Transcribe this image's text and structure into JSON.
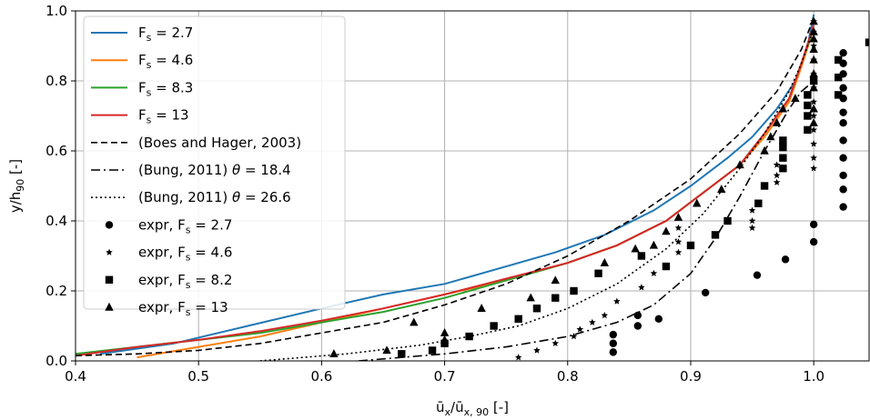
{
  "chart_data": {
    "type": "line",
    "xlabel": "ū_x/ū_x, 90 [-]",
    "ylabel": "y/h_90 [-]",
    "xlim": [
      0.4,
      1.045
    ],
    "ylim": [
      0.0,
      1.0
    ],
    "xticks": [
      "0.4",
      "0.5",
      "0.6",
      "0.7",
      "0.8",
      "0.9",
      "1.0"
    ],
    "yticks": [
      "0.0",
      "0.2",
      "0.4",
      "0.6",
      "0.8",
      "1.0"
    ],
    "grid": true,
    "legend_position": "top-left",
    "series": [
      {
        "name": "F_s = 2.7",
        "kind": "line",
        "color": "#1f77b4",
        "x": [
          0.42,
          0.48,
          0.54,
          0.6,
          0.65,
          0.7,
          0.75,
          0.79,
          0.83,
          0.87,
          0.9,
          0.93,
          0.95,
          0.97,
          0.985,
          0.995,
          1.0
        ],
        "y": [
          0.02,
          0.05,
          0.1,
          0.15,
          0.19,
          0.22,
          0.27,
          0.31,
          0.36,
          0.43,
          0.5,
          0.58,
          0.64,
          0.72,
          0.8,
          0.9,
          0.99
        ]
      },
      {
        "name": "F_s = 4.6",
        "kind": "line",
        "color": "#ff7f0e",
        "x": [
          0.45,
          0.5,
          0.55,
          0.6,
          0.65,
          0.7,
          0.75,
          0.8,
          0.84,
          0.88,
          0.91,
          0.94,
          0.96,
          0.98,
          0.99,
          1.0
        ],
        "y": [
          0.01,
          0.04,
          0.07,
          0.11,
          0.15,
          0.19,
          0.23,
          0.28,
          0.33,
          0.4,
          0.48,
          0.56,
          0.64,
          0.74,
          0.84,
          0.95
        ]
      },
      {
        "name": "F_s = 8.3",
        "kind": "line",
        "color": "#2ca02c",
        "x": [
          0.4,
          0.45,
          0.5,
          0.55,
          0.6,
          0.65,
          0.7,
          0.75,
          0.8,
          0.84,
          0.88,
          0.91,
          0.94,
          0.96,
          0.98,
          0.99,
          1.0
        ],
        "y": [
          0.02,
          0.04,
          0.06,
          0.08,
          0.11,
          0.14,
          0.18,
          0.23,
          0.28,
          0.33,
          0.4,
          0.48,
          0.56,
          0.65,
          0.75,
          0.85,
          0.95
        ]
      },
      {
        "name": "F_s = 13",
        "kind": "line",
        "color": "#d62728",
        "x": [
          0.4,
          0.45,
          0.5,
          0.55,
          0.6,
          0.65,
          0.7,
          0.75,
          0.8,
          0.84,
          0.88,
          0.91,
          0.94,
          0.96,
          0.98,
          0.99,
          1.0
        ],
        "y": [
          0.015,
          0.04,
          0.06,
          0.085,
          0.115,
          0.15,
          0.19,
          0.235,
          0.28,
          0.33,
          0.4,
          0.48,
          0.56,
          0.65,
          0.75,
          0.85,
          0.96
        ]
      },
      {
        "name": "(Boes and Hager, 2003)",
        "kind": "line",
        "color": "#000000",
        "dash": "7,4",
        "x": [
          0.4,
          0.45,
          0.5,
          0.55,
          0.6,
          0.65,
          0.7,
          0.75,
          0.8,
          0.85,
          0.9,
          0.94,
          0.97,
          0.99,
          1.0
        ],
        "y": [
          0.015,
          0.02,
          0.03,
          0.05,
          0.08,
          0.11,
          0.16,
          0.22,
          0.3,
          0.4,
          0.52,
          0.65,
          0.77,
          0.89,
          0.98
        ]
      },
      {
        "name": "(Bung, 2011) θ = 18.4",
        "kind": "line",
        "color": "#000000",
        "dash": "10,4,2,4",
        "x": [
          0.63,
          0.7,
          0.75,
          0.8,
          0.84,
          0.87,
          0.9,
          0.92,
          0.94,
          0.96,
          0.98,
          0.99,
          1.0
        ],
        "y": [
          0.0,
          0.02,
          0.04,
          0.07,
          0.11,
          0.16,
          0.25,
          0.35,
          0.47,
          0.6,
          0.72,
          0.77,
          0.8
        ]
      },
      {
        "name": "(Bung, 2011) θ = 26.6",
        "kind": "line",
        "color": "#000000",
        "dash": "2,3",
        "x": [
          0.55,
          0.62,
          0.68,
          0.72,
          0.76,
          0.8,
          0.84,
          0.88,
          0.91,
          0.94,
          0.96,
          0.98,
          0.99,
          1.0
        ],
        "y": [
          0.0,
          0.02,
          0.045,
          0.07,
          0.1,
          0.15,
          0.22,
          0.32,
          0.42,
          0.55,
          0.65,
          0.77,
          0.85,
          0.95
        ]
      },
      {
        "name": "expr, F_s = 2.7",
        "kind": "scatter",
        "marker": "circle",
        "color": "#000000",
        "x": [
          0.837,
          0.837,
          0.837,
          0.857,
          0.857,
          0.874,
          0.912,
          0.954,
          0.977,
          1.0,
          1.0,
          1.024,
          1.024,
          1.024,
          1.024,
          1.024,
          1.024,
          1.024,
          1.024,
          1.024,
          1.024,
          1.024,
          1.024
        ],
        "y": [
          0.025,
          0.05,
          0.075,
          0.1,
          0.13,
          0.12,
          0.195,
          0.245,
          0.29,
          0.34,
          0.39,
          0.44,
          0.49,
          0.53,
          0.58,
          0.63,
          0.68,
          0.71,
          0.75,
          0.78,
          0.82,
          0.85,
          0.88
        ]
      },
      {
        "name": "expr, F_s = 4.6",
        "kind": "scatter",
        "marker": "star",
        "color": "#000000",
        "x": [
          0.76,
          0.775,
          0.79,
          0.805,
          0.81,
          0.82,
          0.83,
          0.84,
          0.86,
          0.87,
          0.88,
          0.89,
          0.89,
          0.89,
          0.95,
          0.95,
          0.95,
          0.97,
          0.97,
          0.97,
          1.0,
          1.0,
          1.0,
          1.0,
          1.0,
          1.0,
          1.0,
          1.0,
          1.0,
          1.0,
          1.0,
          1.0
        ],
        "y": [
          0.01,
          0.03,
          0.05,
          0.07,
          0.09,
          0.11,
          0.13,
          0.17,
          0.21,
          0.25,
          0.27,
          0.31,
          0.34,
          0.38,
          0.38,
          0.4,
          0.43,
          0.51,
          0.53,
          0.56,
          0.55,
          0.58,
          0.62,
          0.66,
          0.7,
          0.74,
          0.78,
          0.82,
          0.86,
          0.9,
          0.94,
          0.97
        ]
      },
      {
        "name": "expr, F_s = 8.2",
        "kind": "scatter",
        "marker": "square",
        "color": "#000000",
        "x": [
          0.665,
          0.69,
          0.7,
          0.72,
          0.74,
          0.76,
          0.775,
          0.79,
          0.805,
          0.825,
          0.86,
          0.88,
          0.9,
          0.92,
          0.93,
          0.955,
          0.96,
          0.975,
          0.975,
          0.975,
          0.975,
          0.995,
          0.995,
          0.995,
          0.995,
          1.0,
          1.02,
          1.02,
          1.02,
          1.045
        ],
        "y": [
          0.02,
          0.03,
          0.05,
          0.07,
          0.1,
          0.12,
          0.15,
          0.18,
          0.2,
          0.25,
          0.3,
          0.27,
          0.33,
          0.36,
          0.4,
          0.45,
          0.5,
          0.55,
          0.58,
          0.61,
          0.63,
          0.66,
          0.7,
          0.73,
          0.76,
          0.8,
          0.86,
          0.81,
          0.76,
          0.91
        ]
      },
      {
        "name": "expr, F_s = 13",
        "kind": "scatter",
        "marker": "triangle",
        "color": "#000000",
        "x": [
          0.61,
          0.653,
          0.675,
          0.7,
          0.7,
          0.73,
          0.77,
          0.79,
          0.83,
          0.855,
          0.87,
          0.88,
          0.89,
          0.905,
          0.925,
          0.94,
          0.96,
          0.965,
          0.97,
          0.975,
          0.985,
          1.0,
          1.0,
          1.0,
          1.0,
          1.0,
          1.0,
          1.0,
          1.0,
          1.0
        ],
        "y": [
          0.02,
          0.03,
          0.11,
          0.08,
          0.06,
          0.15,
          0.18,
          0.23,
          0.28,
          0.32,
          0.33,
          0.37,
          0.41,
          0.45,
          0.49,
          0.56,
          0.6,
          0.64,
          0.68,
          0.72,
          0.75,
          0.68,
          0.72,
          0.78,
          0.82,
          0.86,
          0.89,
          0.92,
          0.94,
          0.97
        ]
      }
    ]
  }
}
